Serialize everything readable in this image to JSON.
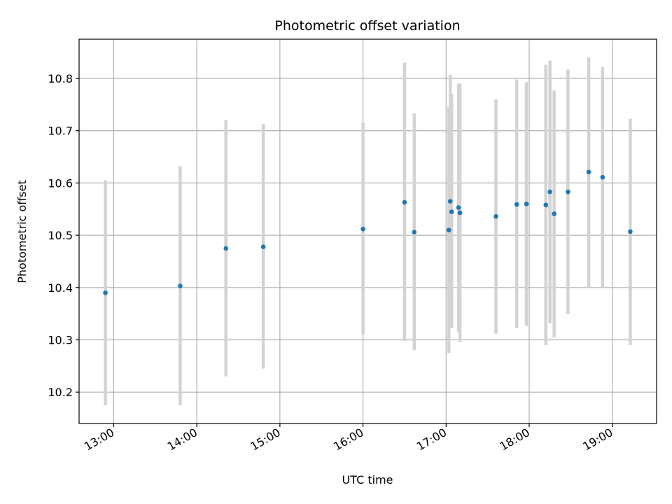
{
  "chart_data": {
    "type": "scatter",
    "title": "Photometric offset variation",
    "xlabel": "UTC time",
    "ylabel": "Photometric offset",
    "x_axis": {
      "kind": "time",
      "range": [
        "12:35",
        "19:32"
      ],
      "ticks": [
        "13:00",
        "14:00",
        "15:00",
        "16:00",
        "17:00",
        "18:00",
        "19:00"
      ]
    },
    "y_axis": {
      "range": [
        10.14,
        10.875
      ],
      "ticks": [
        10.2,
        10.3,
        10.4,
        10.5,
        10.6,
        10.7,
        10.8
      ],
      "tick_labels": [
        "10.2",
        "10.3",
        "10.4",
        "10.5",
        "10.6",
        "10.7",
        "10.8"
      ]
    },
    "grid": true,
    "point_color": "#1f77b4",
    "error_bar_color": "#d3d3d3",
    "points": [
      {
        "time": "12:54",
        "value": 10.39,
        "low": 10.175,
        "high": 10.605
      },
      {
        "time": "13:48",
        "value": 10.403,
        "low": 10.175,
        "high": 10.632
      },
      {
        "time": "14:21",
        "value": 10.475,
        "low": 10.23,
        "high": 10.72
      },
      {
        "time": "14:48",
        "value": 10.478,
        "low": 10.245,
        "high": 10.713
      },
      {
        "time": "16:00",
        "value": 10.512,
        "low": 10.31,
        "high": 10.715
      },
      {
        "time": "16:30",
        "value": 10.563,
        "low": 10.298,
        "high": 10.83
      },
      {
        "time": "16:37",
        "value": 10.506,
        "low": 10.28,
        "high": 10.733
      },
      {
        "time": "17:02",
        "value": 10.51,
        "low": 10.275,
        "high": 10.745
      },
      {
        "time": "17:03",
        "value": 10.565,
        "low": 10.322,
        "high": 10.807
      },
      {
        "time": "17:04",
        "value": 10.545,
        "low": 10.322,
        "high": 10.77
      },
      {
        "time": "17:09",
        "value": 10.553,
        "low": 10.316,
        "high": 10.79
      },
      {
        "time": "17:10",
        "value": 10.543,
        "low": 10.296,
        "high": 10.79
      },
      {
        "time": "17:36",
        "value": 10.536,
        "low": 10.312,
        "high": 10.76
      },
      {
        "time": "17:51",
        "value": 10.559,
        "low": 10.322,
        "high": 10.798
      },
      {
        "time": "17:58",
        "value": 10.56,
        "low": 10.327,
        "high": 10.793
      },
      {
        "time": "18:12",
        "value": 10.558,
        "low": 10.29,
        "high": 10.826
      },
      {
        "time": "18:15",
        "value": 10.583,
        "low": 10.332,
        "high": 10.834
      },
      {
        "time": "18:18",
        "value": 10.541,
        "low": 10.305,
        "high": 10.777
      },
      {
        "time": "18:28",
        "value": 10.583,
        "low": 10.349,
        "high": 10.817
      },
      {
        "time": "18:43",
        "value": 10.621,
        "low": 10.4,
        "high": 10.84
      },
      {
        "time": "18:53",
        "value": 10.611,
        "low": 10.4,
        "high": 10.822
      },
      {
        "time": "19:13",
        "value": 10.507,
        "low": 10.29,
        "high": 10.723
      }
    ]
  }
}
